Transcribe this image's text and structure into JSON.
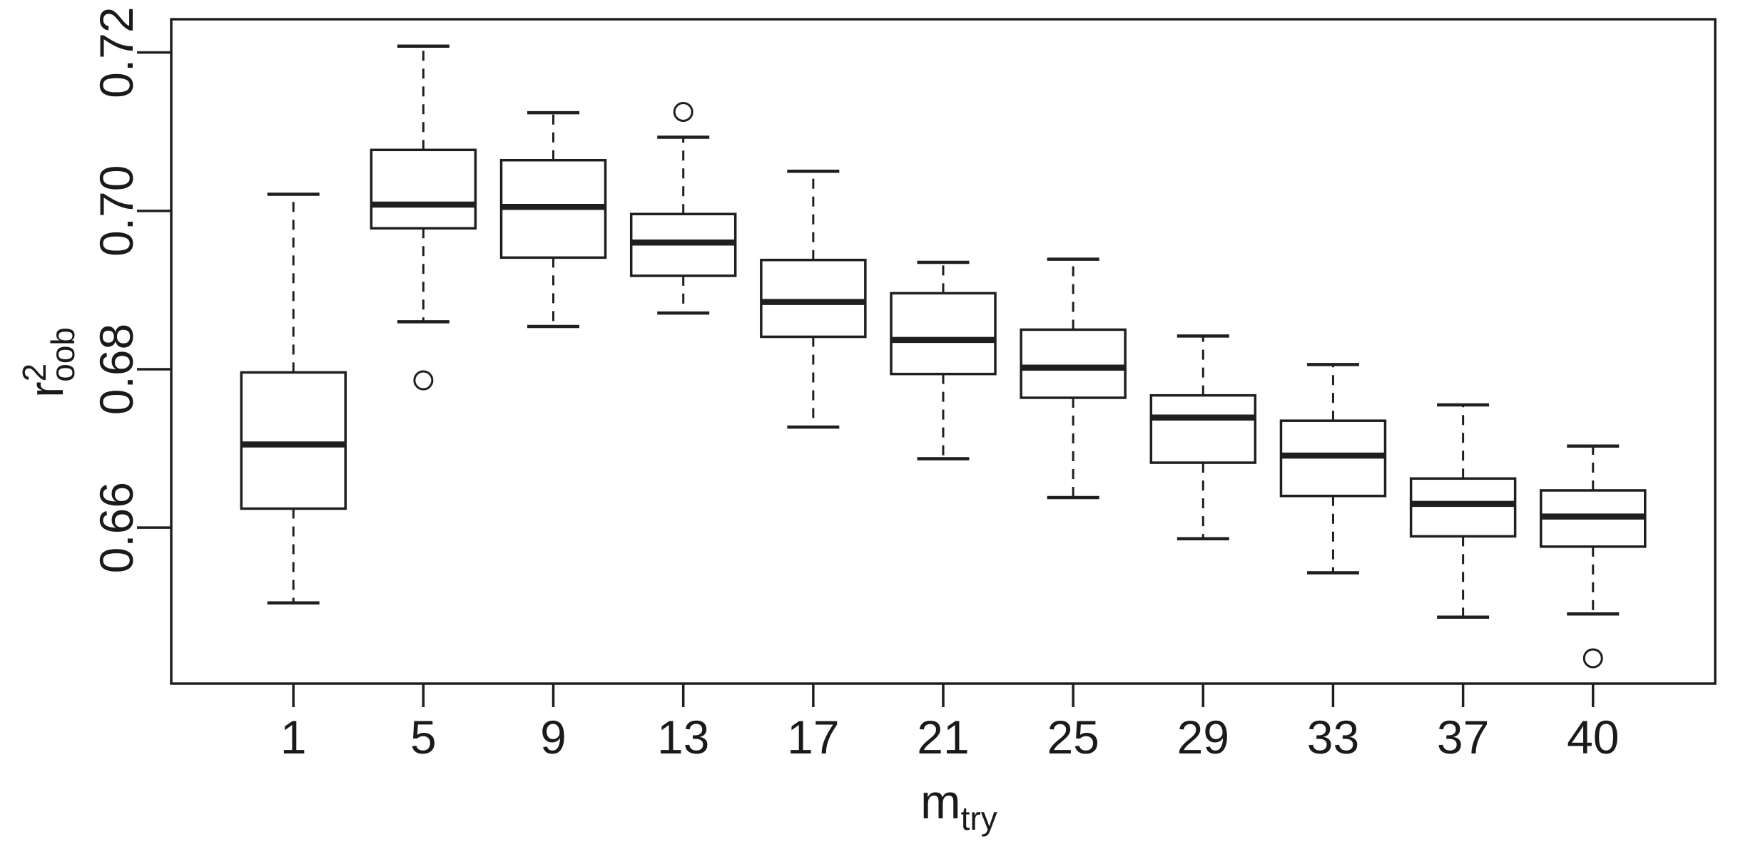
{
  "figure": {
    "background": "#ffffff",
    "line_color": "#1f1f1f",
    "median_color": "#000000",
    "box_fill": "#ffffff"
  },
  "chart_data": {
    "type": "boxplot",
    "title": "",
    "xlabel": {
      "main": "m",
      "sub": "try"
    },
    "ylabel": {
      "main": "r",
      "sup": "2",
      "sub": "oob"
    },
    "categories": [
      "1",
      "5",
      "9",
      "13",
      "17",
      "21",
      "25",
      "29",
      "33",
      "37",
      "40"
    ],
    "boxes": [
      {
        "label": "1",
        "low": 0.6505,
        "q1": 0.6624,
        "median": 0.6705,
        "q3": 0.6796,
        "high": 0.7021,
        "outliers": []
      },
      {
        "label": "5",
        "low": 0.686,
        "q1": 0.6978,
        "median": 0.7008,
        "q3": 0.7077,
        "high": 0.7208,
        "outliers": [
          0.6786
        ]
      },
      {
        "label": "9",
        "low": 0.6854,
        "q1": 0.6941,
        "median": 0.7005,
        "q3": 0.7064,
        "high": 0.7124,
        "outliers": []
      },
      {
        "label": "13",
        "low": 0.6871,
        "q1": 0.6918,
        "median": 0.696,
        "q3": 0.6996,
        "high": 0.7093,
        "outliers": [
          0.7125
        ]
      },
      {
        "label": "17",
        "low": 0.6727,
        "q1": 0.6841,
        "median": 0.6885,
        "q3": 0.6938,
        "high": 0.705,
        "outliers": []
      },
      {
        "label": "21",
        "low": 0.6687,
        "q1": 0.6794,
        "median": 0.6837,
        "q3": 0.6896,
        "high": 0.6935,
        "outliers": []
      },
      {
        "label": "25",
        "low": 0.6638,
        "q1": 0.6764,
        "median": 0.6802,
        "q3": 0.685,
        "high": 0.6939,
        "outliers": []
      },
      {
        "label": "29",
        "low": 0.6586,
        "q1": 0.6682,
        "median": 0.6739,
        "q3": 0.6767,
        "high": 0.6842,
        "outliers": []
      },
      {
        "label": "33",
        "low": 0.6543,
        "q1": 0.664,
        "median": 0.6691,
        "q3": 0.6735,
        "high": 0.6806,
        "outliers": []
      },
      {
        "label": "37",
        "low": 0.6487,
        "q1": 0.6589,
        "median": 0.663,
        "q3": 0.6662,
        "high": 0.6755,
        "outliers": []
      },
      {
        "label": "40",
        "low": 0.6491,
        "q1": 0.6576,
        "median": 0.6614,
        "q3": 0.6647,
        "high": 0.6703,
        "outliers": [
          0.6435
        ]
      }
    ],
    "ylim": [
      0.6403,
      0.7242
    ],
    "yticks": [
      {
        "value": 0.66,
        "label": "0.66"
      },
      {
        "value": 0.68,
        "label": "0.68"
      },
      {
        "value": 0.7,
        "label": "0.70"
      },
      {
        "value": 0.72,
        "label": "0.72"
      }
    ],
    "grid": false,
    "legend": null
  }
}
